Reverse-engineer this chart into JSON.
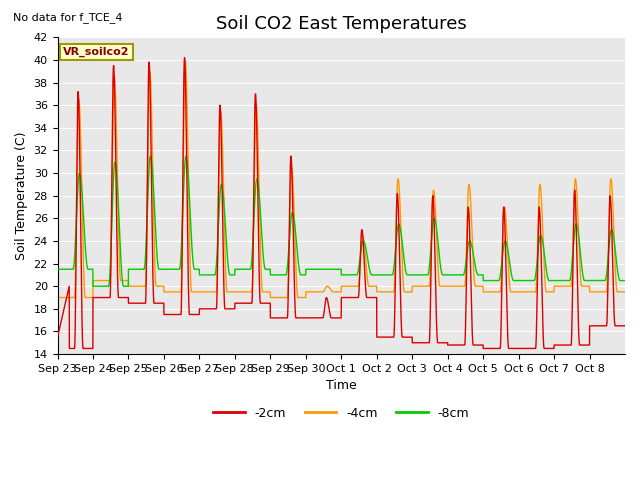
{
  "title": "Soil CO2 East Temperatures",
  "subtitle": "No data for f_TCE_4",
  "legend_label": "VR_soilco2",
  "xlabel": "Time",
  "ylabel": "Soil Temperature (C)",
  "ylim": [
    14,
    42
  ],
  "yticks": [
    14,
    16,
    18,
    20,
    22,
    24,
    26,
    28,
    30,
    32,
    34,
    36,
    38,
    40,
    42
  ],
  "xtick_labels": [
    "Sep 23",
    "Sep 24",
    "Sep 25",
    "Sep 26",
    "Sep 27",
    "Sep 28",
    "Sep 29",
    "Sep 30",
    "Oct 1",
    "Oct 2",
    "Oct 3",
    "Oct 4",
    "Oct 5",
    "Oct 6",
    "Oct 7",
    "Oct 8"
  ],
  "line_colors": {
    "2cm": "#dd0000",
    "4cm": "#ff9900",
    "8cm": "#00cc00"
  },
  "legend_entries": [
    "-2cm",
    "-4cm",
    "-8cm"
  ],
  "bg_color": "#e8e8e8",
  "title_fontsize": 13,
  "axis_fontsize": 9,
  "tick_fontsize": 8
}
